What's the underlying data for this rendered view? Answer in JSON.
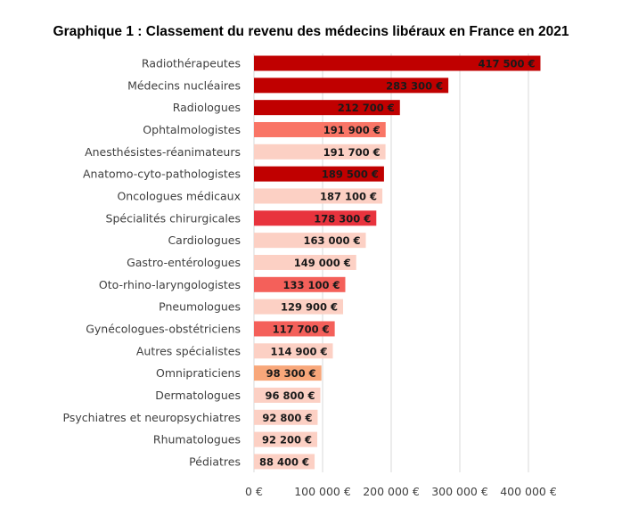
{
  "chart_data": {
    "type": "bar",
    "orientation": "horizontal",
    "title": "Graphique 1 : Classement du revenu des médecins libéraux en France en 2021",
    "categories": [
      "Radiothérapeutes",
      "Médecins nucléaires",
      "Radiologues",
      "Ophtalmologistes",
      "Anesthésistes-réanimateurs",
      "Anatomo-cyto-pathologistes",
      "Oncologues médicaux",
      "Spécialités chirurgicales",
      "Cardiologues",
      "Gastro-entérologues",
      "Oto-rhino-laryngologistes",
      "Pneumologues",
      "Gynécologues-obstétriciens",
      "Autres spécialistes",
      "Omnipraticiens",
      "Dermatologues",
      "Psychiatres et neuropsychiatres",
      "Rhumatologues",
      "Pédiatres"
    ],
    "values": [
      417500,
      283300,
      212700,
      191900,
      191700,
      189500,
      187100,
      178300,
      163000,
      149000,
      133100,
      129900,
      117700,
      114900,
      98300,
      96800,
      92800,
      92200,
      88400
    ],
    "value_labels": [
      "417 500 €",
      "283 300 €",
      "212 700 €",
      "191 900 €",
      "191 700 €",
      "189 500 €",
      "187 100 €",
      "178 300 €",
      "163 000 €",
      "149 000 €",
      "133 100 €",
      "129 900 €",
      "117 700 €",
      "114 900 €",
      "98 300 €",
      "96 800 €",
      "92 800 €",
      "92 200 €",
      "88 400 €"
    ],
    "bar_colors": [
      "#c00000",
      "#c00000",
      "#c00000",
      "#f97566",
      "#fcd0c4",
      "#c00000",
      "#fcd0c4",
      "#e8333d",
      "#fcd0c4",
      "#fcd0c4",
      "#f4605a",
      "#fcd0c4",
      "#f4605a",
      "#fcd0c4",
      "#f8a77a",
      "#fcd0c4",
      "#fcd0c4",
      "#fcd0c4",
      "#fcd0c4"
    ],
    "xlim": [
      0,
      450000
    ],
    "xticks": [
      0,
      100000,
      200000,
      300000,
      400000
    ],
    "xtick_labels": [
      "0 €",
      "100 000 €",
      "200 000 €",
      "300 000 €",
      "400 000 €"
    ],
    "grid": true,
    "legend": "none"
  }
}
